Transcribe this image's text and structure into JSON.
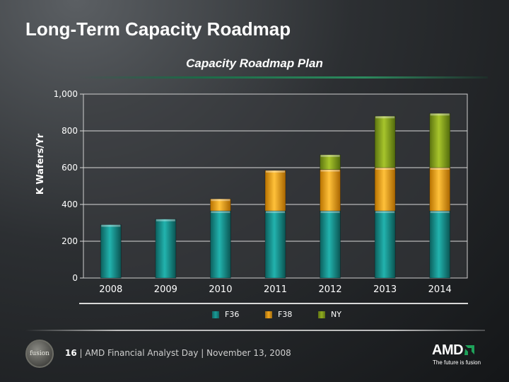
{
  "slide": {
    "title": "Long-Term Capacity Roadmap",
    "footer_page": "16",
    "footer_text": "AMD Financial Analyst Day | November 13, 2008",
    "footer_logo_text": "fusion",
    "brand": "AMD",
    "tagline": "The future is fusion"
  },
  "colors": {
    "F36": "#1a9b97",
    "F38": "#f2a51a",
    "NY": "#8fac1f"
  },
  "chart_data": {
    "type": "bar",
    "stacked": true,
    "title": "Capacity Roadmap Plan",
    "xlabel": "",
    "ylabel": "K Wafers/Yr",
    "ylim": [
      0,
      1000
    ],
    "yticks": [
      0,
      200,
      400,
      600,
      800,
      1000
    ],
    "ytick_labels": [
      "0",
      "200",
      "400",
      "600",
      "800",
      "1,000"
    ],
    "categories": [
      "2008",
      "2009",
      "2010",
      "2011",
      "2012",
      "2013",
      "2014"
    ],
    "series": [
      {
        "name": "F36",
        "values": [
          290,
          320,
          365,
          365,
          365,
          365,
          365
        ]
      },
      {
        "name": "F38",
        "values": [
          0,
          0,
          65,
          220,
          225,
          235,
          235
        ]
      },
      {
        "name": "NY",
        "values": [
          0,
          0,
          0,
          0,
          80,
          280,
          295
        ]
      }
    ],
    "legend": "bottom",
    "grid": true
  }
}
